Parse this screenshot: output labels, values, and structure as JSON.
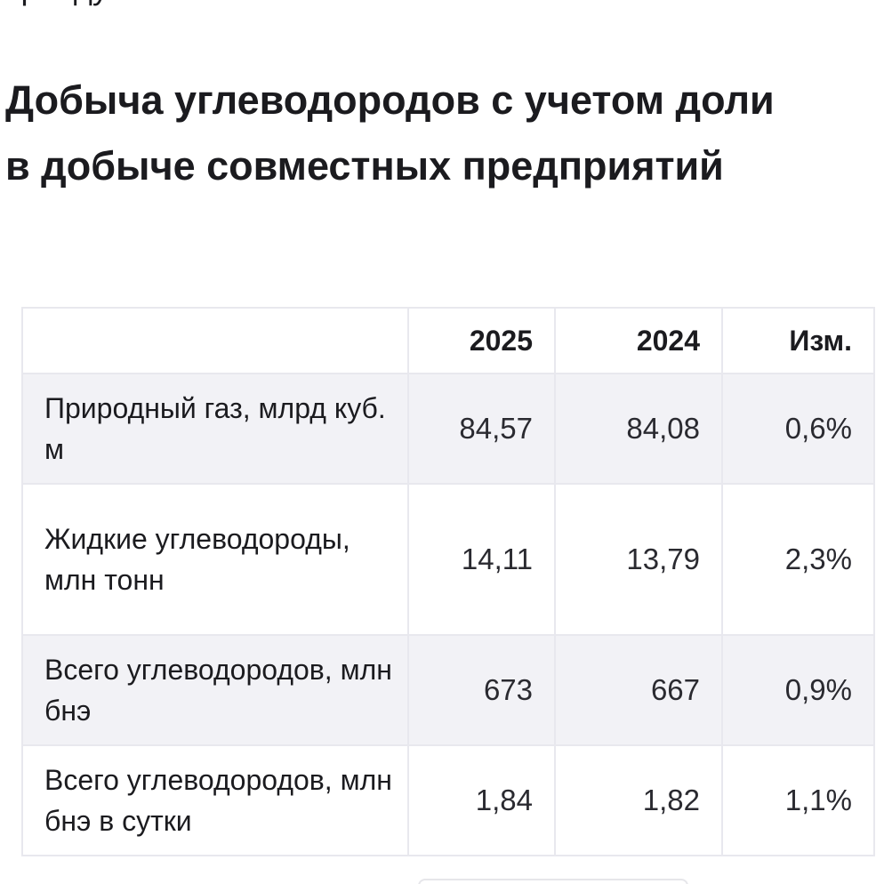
{
  "cut_text": "приоду",
  "title": "Добыча углеводородов с учетом доли в добыче совместных предприятий",
  "table": {
    "headers": [
      "",
      "2025",
      "2024",
      "Изм."
    ],
    "rows": [
      {
        "label": "Природный газ, млрд куб. м",
        "v2025": "84,57",
        "v2024": "84,08",
        "change": "0,6%"
      },
      {
        "label": "Жидкие углеводороды, млн тонн",
        "v2025": "14,11",
        "v2024": "13,79",
        "change": "2,3%"
      },
      {
        "label": "Всего углеводородов, млн бнэ",
        "v2025": "673",
        "v2024": "667",
        "change": "0,9%"
      },
      {
        "label": "Всего углеводородов, млн бнэ в сутки",
        "v2025": "1,84",
        "v2024": "1,82",
        "change": "1,1%"
      }
    ]
  }
}
